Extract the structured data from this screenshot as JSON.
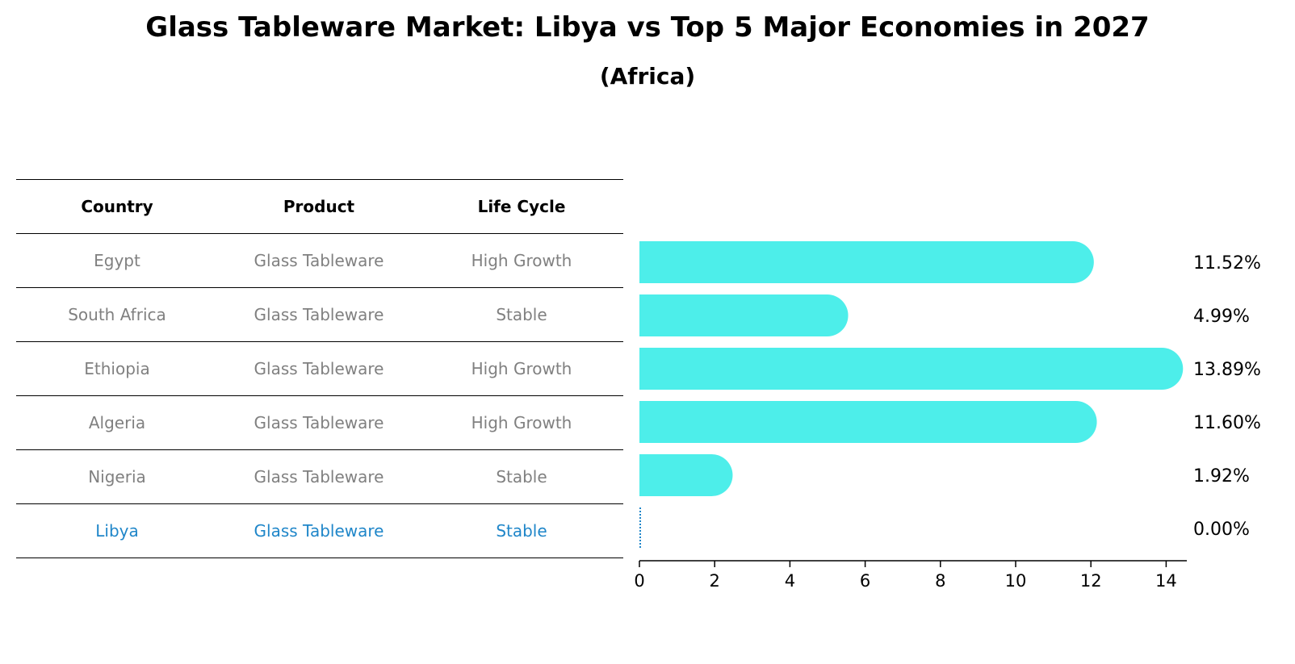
{
  "title": "Glass Tableware Market: Libya vs Top 5 Major Economies in 2027",
  "subtitle": "(Africa)",
  "table": {
    "headers": [
      "Country",
      "Product",
      "Life Cycle"
    ],
    "rows": [
      [
        "Egypt",
        "Glass Tableware",
        "High Growth"
      ],
      [
        "South Africa",
        "Glass Tableware",
        "Stable"
      ],
      [
        "Ethiopia",
        "Glass Tableware",
        "High Growth"
      ],
      [
        "Algeria",
        "Glass Tableware",
        "High Growth"
      ],
      [
        "Nigeria",
        "Glass Tableware",
        "Stable"
      ],
      [
        "Libya",
        "Glass Tableware",
        "Stable"
      ]
    ]
  },
  "chart_data": {
    "type": "bar",
    "orientation": "horizontal",
    "categories": [
      "Egypt",
      "South Africa",
      "Ethiopia",
      "Algeria",
      "Nigeria",
      "Libya"
    ],
    "values": [
      11.52,
      4.99,
      13.89,
      11.6,
      1.92,
      0.0
    ],
    "value_labels": [
      "11.52%",
      "4.99%",
      "13.89%",
      "11.60%",
      "1.92%",
      "0.00%"
    ],
    "xticks": [
      0,
      2,
      4,
      6,
      8,
      10,
      12,
      14
    ],
    "xlim": [
      0,
      14.6
    ],
    "bar_color": "#4deeea",
    "highlight_color": "#1f86c9"
  }
}
